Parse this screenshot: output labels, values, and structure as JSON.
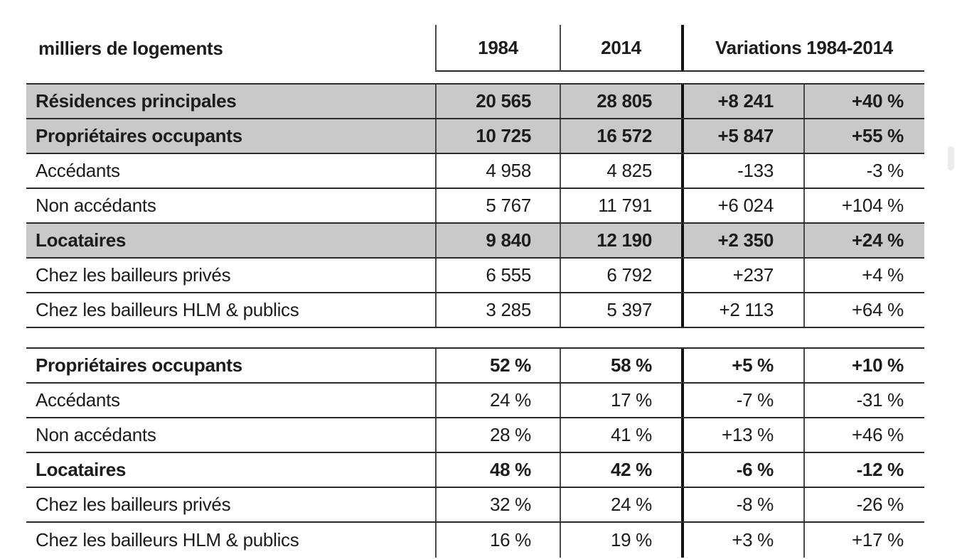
{
  "header": {
    "unit_label": "milliers de logements",
    "col_1984": "1984",
    "col_2014": "2014",
    "col_variations": "Variations 1984-2014"
  },
  "sections": [
    {
      "name": "counts",
      "rows": [
        {
          "label": "Résidences principales",
          "v1984": "20 565",
          "v2014": "28 805",
          "var_abs": "+8 241",
          "var_pct": "+40 %",
          "emphasis": true,
          "shaded": true
        },
        {
          "label": "Propriétaires occupants",
          "v1984": "10 725",
          "v2014": "16 572",
          "var_abs": "+5 847",
          "var_pct": "+55 %",
          "emphasis": true,
          "shaded": true
        },
        {
          "label": "Accédants",
          "v1984": "4 958",
          "v2014": "4 825",
          "var_abs": "-133",
          "var_pct": "-3 %",
          "emphasis": false,
          "shaded": false
        },
        {
          "label": "Non accédants",
          "v1984": "5 767",
          "v2014": "11 791",
          "var_abs": "+6 024",
          "var_pct": "+104 %",
          "emphasis": false,
          "shaded": false
        },
        {
          "label": "Locataires",
          "v1984": "9 840",
          "v2014": "12 190",
          "var_abs": "+2 350",
          "var_pct": "+24 %",
          "emphasis": true,
          "shaded": true
        },
        {
          "label": "Chez les bailleurs privés",
          "v1984": "6 555",
          "v2014": "6 792",
          "var_abs": "+237",
          "var_pct": "+4 %",
          "emphasis": false,
          "shaded": false
        },
        {
          "label": "Chez les bailleurs HLM & publics",
          "v1984": "3 285",
          "v2014": "5 397",
          "var_abs": "+2 113",
          "var_pct": "+64 %",
          "emphasis": false,
          "shaded": false
        }
      ]
    },
    {
      "name": "shares",
      "rows": [
        {
          "label": "Propriétaires occupants",
          "v1984": "52 %",
          "v2014": "58 %",
          "var_abs": "+5 %",
          "var_pct": "+10 %",
          "emphasis": true,
          "shaded": false
        },
        {
          "label": "Accédants",
          "v1984": "24 %",
          "v2014": "17 %",
          "var_abs": "-7 %",
          "var_pct": "-31 %",
          "emphasis": false,
          "shaded": false
        },
        {
          "label": "Non accédants",
          "v1984": "28 %",
          "v2014": "41 %",
          "var_abs": "+13 %",
          "var_pct": "+46 %",
          "emphasis": false,
          "shaded": false
        },
        {
          "label": "Locataires",
          "v1984": "48 %",
          "v2014": "42 %",
          "var_abs": "-6 %",
          "var_pct": "-12 %",
          "emphasis": true,
          "shaded": false
        },
        {
          "label": "Chez les bailleurs privés",
          "v1984": "32 %",
          "v2014": "24 %",
          "var_abs": "-8 %",
          "var_pct": "-26 %",
          "emphasis": false,
          "shaded": false
        },
        {
          "label": "Chez les bailleurs HLM & publics",
          "v1984": "16 %",
          "v2014": "19 %",
          "var_abs": "+3 %",
          "var_pct": "+17 %",
          "emphasis": false,
          "shaded": false
        }
      ]
    }
  ],
  "colors": {
    "shaded_row_bg": "#c9c9c9",
    "border_dark": "#2b2b2b",
    "divider_black": "#111111",
    "thin_vertical": "#4a4a4a",
    "scrollbar_thumb": "#ececec",
    "text_color": "#1c1c1c"
  }
}
